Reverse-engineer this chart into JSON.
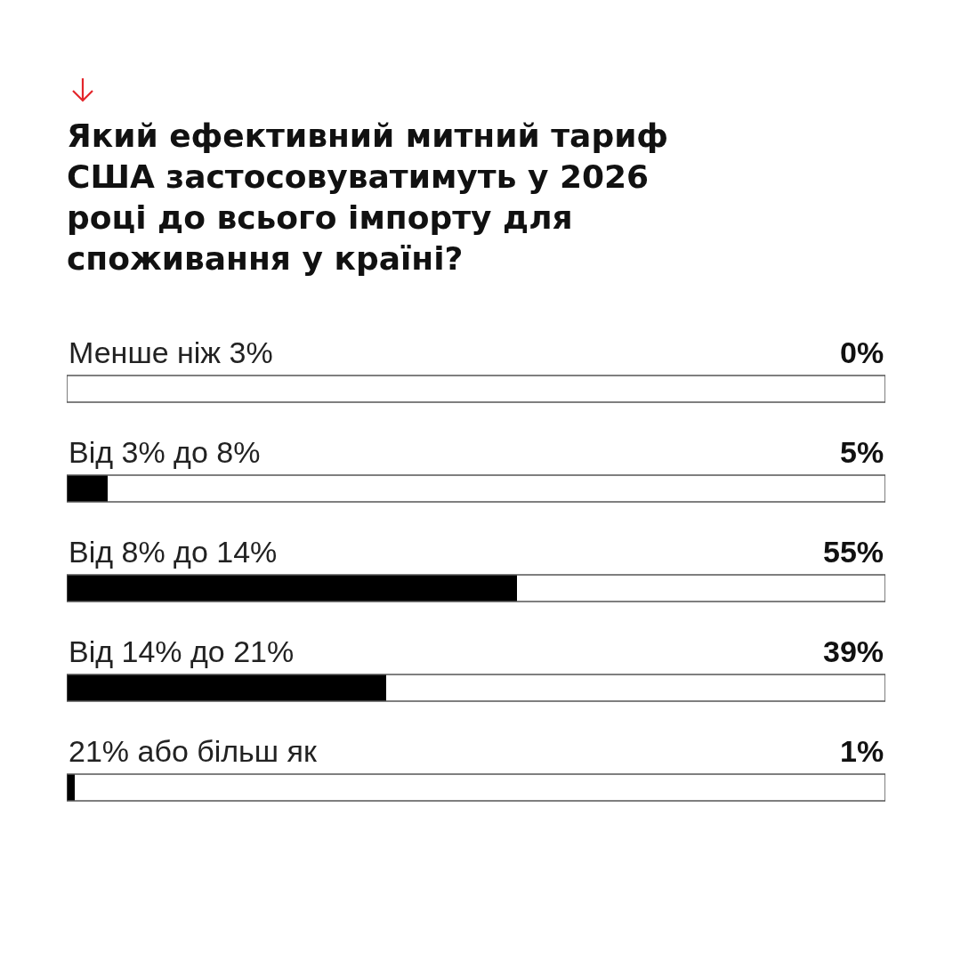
{
  "chart_data": {
    "type": "bar",
    "orientation": "horizontal",
    "title": "Який ефективний митний тариф США застосовуватимуть у 2026 році до всього імпорту для споживання у країні?",
    "categories": [
      "Менше ніж 3%",
      "Від 3% до 8%",
      "Від 8% до 14%",
      "Від 14% до 21%",
      "21% або більш як"
    ],
    "values": [
      0,
      5,
      55,
      39,
      1
    ],
    "value_labels": [
      "0%",
      "5%",
      "55%",
      "39%",
      "1%"
    ],
    "color": "#000000",
    "xlim": [
      0,
      100
    ]
  }
}
